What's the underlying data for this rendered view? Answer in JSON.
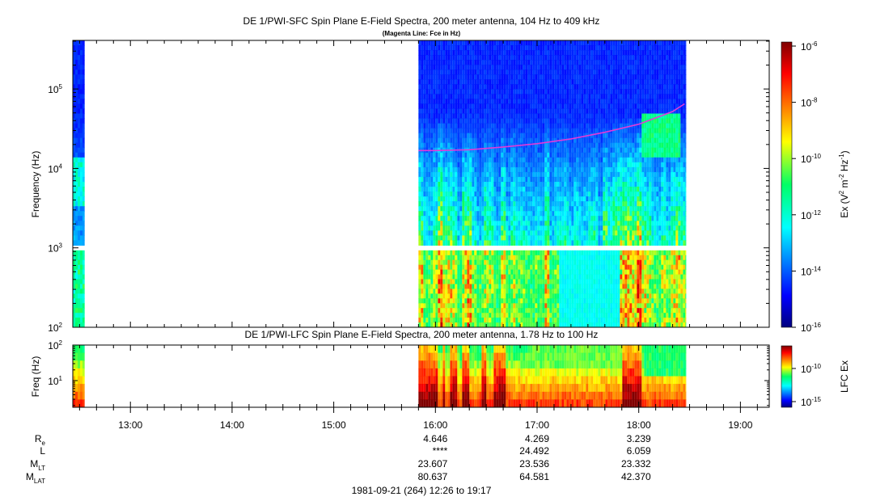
{
  "chart_data": [
    {
      "type": "heatmap",
      "title": "DE 1/PWI-SFC  Spin Plane E-Field Spectra, 200 meter antenna, 104 Hz to 409 kHz",
      "subtitle": "(Magenta Line: Fce in Hz)",
      "ylabel": "Frequency (Hz)",
      "yscale": "log",
      "ylim": [
        100,
        409000
      ],
      "ytick_base": "10",
      "yticks": [
        {
          "value": 100,
          "exp": "2"
        },
        {
          "value": 1000,
          "exp": "3"
        },
        {
          "value": 10000,
          "exp": "4"
        },
        {
          "value": 100000,
          "exp": "5"
        }
      ],
      "data_intervals": [
        [
          "12:26",
          "12:33"
        ],
        [
          "15:50",
          "18:28"
        ]
      ],
      "series": [
        {
          "name": "Fce",
          "color": "#e23ad8",
          "x": [
            "15:50",
            "16:00",
            "16:20",
            "16:40",
            "17:00",
            "17:20",
            "17:40",
            "18:00",
            "18:20",
            "18:27"
          ],
          "values": [
            16800,
            16800,
            17200,
            18600,
            20500,
            23500,
            28500,
            36000,
            52000,
            65000
          ]
        }
      ],
      "colorbar": {
        "label_main": "Ex (V",
        "label_rest_1": " m",
        "label_rest_2": " Hz",
        "label_rest_3": ")",
        "label_sup_1": "2",
        "label_sup_2": "-2",
        "label_sup_3": "-1",
        "scale": "log",
        "range": [
          1e-16,
          1e-06
        ],
        "ticks": [
          {
            "label": "10",
            "exp": "-6"
          },
          {
            "label": "10",
            "exp": "-8"
          },
          {
            "label": "10",
            "exp": "-10"
          },
          {
            "label": "10",
            "exp": "-12"
          },
          {
            "label": "10",
            "exp": "-14"
          },
          {
            "label": "10",
            "exp": "-16"
          }
        ]
      }
    },
    {
      "type": "heatmap",
      "title": "DE 1/PWI-LFC  Spin Plane E-Field Spectra, 200 meter antenna, 1.78 Hz to 100 Hz",
      "ylabel": "Freq (Hz)",
      "yscale": "log",
      "ylim": [
        1.78,
        100
      ],
      "yticks": [
        {
          "label": "10",
          "exp": "2"
        },
        {
          "label": "10",
          "exp": "1"
        }
      ],
      "colorbar": {
        "label": "LFC Ex",
        "scale": "log",
        "ticks": [
          {
            "label": "10",
            "exp": "-10"
          },
          {
            "label": "10",
            "exp": "-15"
          }
        ]
      }
    }
  ],
  "time_axis": {
    "ticks": [
      "13:00",
      "14:00",
      "15:00",
      "16:00",
      "17:00",
      "18:00",
      "19:00"
    ],
    "start": "12:26",
    "end": "19:17",
    "caption": "1981-09-21 (264) 12:26 to 19:17"
  },
  "ephemeris": {
    "rows": [
      {
        "label": "R",
        "sub": "e",
        "values": [
          "4.646",
          "4.269",
          "3.239"
        ]
      },
      {
        "label": "L",
        "sub": "",
        "values": [
          "****",
          "24.492",
          "6.059"
        ]
      },
      {
        "label": "M",
        "sub": "LT",
        "values": [
          "23.607",
          "23.536",
          "23.332"
        ]
      },
      {
        "label": "M",
        "sub": "LAT",
        "values": [
          "80.637",
          "64.581",
          "42.370"
        ]
      }
    ]
  }
}
